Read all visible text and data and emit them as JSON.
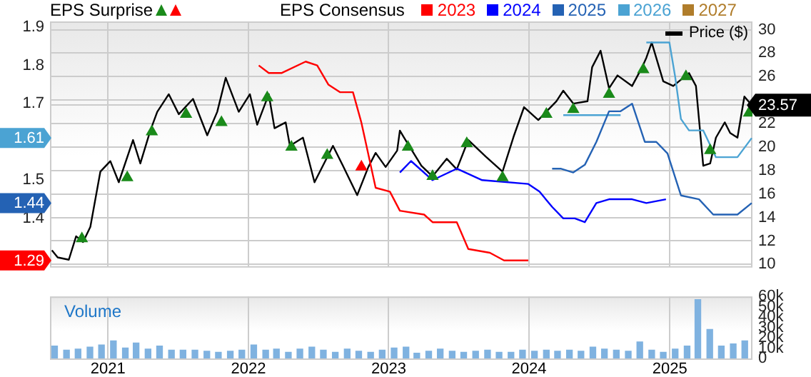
{
  "chart_data": [
    {
      "type": "line",
      "annotations": [
        "EPS Surprise",
        "EPS Consensus"
      ],
      "legend": "top",
      "grid": true,
      "tick_labels": "y",
      "xlim": [
        "2020-08-03",
        "2025-08-04"
      ],
      "xticks": [
        "2021",
        "2022",
        "2023",
        "2024",
        "2025"
      ],
      "ylim": [
        1.275,
        1.915
      ],
      "yticks": [
        {
          "value": 1.29,
          "label": "1.29"
        },
        1.4,
        {
          "value": 1.44,
          "label": "1.44"
        },
        1.5,
        {
          "value": 1.61,
          "label": "1.61"
        },
        1.7,
        1.8,
        1.9
      ],
      "y2lim": [
        9.85,
        30.7
      ],
      "y2ticks": [
        10,
        12,
        14,
        16,
        18,
        20,
        22,
        {
          "value": 23.57,
          "label": "23.57"
        },
        {
          "value": 24,
          "label": null
        },
        26,
        28,
        30
      ],
      "series": [
        {
          "name": "2023",
          "color": "#ff0000",
          "marker": "none",
          "x": [
            "2022-01-28",
            "2022-02-23",
            "2022-03-28",
            "2022-05-30",
            "2022-06-29",
            "2022-07-28",
            "2022-08-27",
            "2022-09-30",
            "2022-10-22",
            "2022-11-28",
            "2023-01-04",
            "2023-01-30",
            "2023-04-03",
            "2023-04-25",
            "2023-06-27",
            "2023-07-27",
            "2023-09-21",
            "2023-10-28",
            "2023-12-30"
          ],
          "values": [
            1.8,
            1.78,
            1.78,
            1.81,
            1.8,
            1.75,
            1.73,
            1.73,
            1.65,
            1.48,
            1.47,
            1.42,
            1.41,
            1.39,
            1.39,
            1.32,
            1.31,
            1.29,
            1.29
          ]
        },
        {
          "name": "2024",
          "color": "#0000ff",
          "marker": "none",
          "x": [
            "2023-01-30",
            "2023-02-28",
            "2023-04-25",
            "2023-06-27",
            "2023-09-01",
            "2023-12-30",
            "2024-01-28",
            "2024-03-01",
            "2024-03-30",
            "2024-04-29",
            "2024-05-25",
            "2024-06-24",
            "2024-07-27",
            "2024-09-25",
            "2024-11-01",
            "2024-12-22"
          ],
          "values": [
            1.52,
            1.55,
            1.5,
            1.53,
            1.5,
            1.49,
            1.47,
            1.43,
            1.4,
            1.4,
            1.39,
            1.44,
            1.45,
            1.45,
            1.44,
            1.45
          ]
        },
        {
          "name": "2025",
          "color": "#2462b4",
          "marker": "none",
          "x": [
            "2024-03-01",
            "2024-03-23",
            "2024-04-25",
            "2024-05-25",
            "2024-06-24",
            "2024-07-27",
            "2024-08-26",
            "2024-09-25",
            "2024-10-28",
            "2024-11-27",
            "2024-12-26",
            "2025-01-30",
            "2025-03-18",
            "2025-04-24",
            "2025-06-26",
            "2025-08-02"
          ],
          "values": [
            1.53,
            1.53,
            1.52,
            1.54,
            1.6,
            1.68,
            1.68,
            1.7,
            1.6,
            1.6,
            1.57,
            1.46,
            1.45,
            1.41,
            1.41,
            1.44
          ]
        },
        {
          "name": "2026",
          "color": "#4ba3d3",
          "marker": "none",
          "x": [
            "2024-03-30",
            "2024-08-26",
            "2024-09-25",
            "2024-11-01",
            "2024-12-31",
            "2025-01-15",
            "2025-01-30",
            "2025-02-20",
            "2025-03-29",
            "2025-05-01",
            "2025-06-26",
            "2025-08-02"
          ],
          "values": [
            1.67,
            1.67,
            null,
            1.86,
            1.86,
            1.77,
            1.66,
            1.63,
            1.63,
            1.56,
            1.56,
            1.61
          ]
        },
        {
          "name": "2027",
          "color": "#b07d2b",
          "marker": "none"
        },
        {
          "name": "Price ($)",
          "color": "#000000",
          "axis": "y2",
          "marker": "none",
          "x": [
            "2020-08-08",
            "2020-08-23",
            "2020-09-21",
            "2020-10-10",
            "2020-10-28",
            "2020-11-16",
            "2020-12-12",
            "2021-01-07",
            "2021-01-29",
            "2021-03-07",
            "2021-03-26",
            "2021-04-21",
            "2021-05-09",
            "2021-06-08",
            "2021-07-04",
            "2021-08-10",
            "2021-09-16",
            "2021-10-12",
            "2021-11-03",
            "2021-12-07",
            "2022-01-05",
            "2022-01-24",
            "2022-02-23",
            "2022-03-10",
            "2022-04-08",
            "2022-04-19",
            "2022-05-23",
            "2022-06-22",
            "2022-08-09",
            "2022-09-04",
            "2022-10-11",
            "2022-11-09",
            "2022-11-28",
            "2022-12-24",
            "2023-01-23",
            "2023-01-30",
            "2023-02-10",
            "2023-03-27",
            "2023-04-25",
            "2023-06-01",
            "2023-06-27",
            "2023-07-27",
            "2023-09-10",
            "2023-10-24",
            "2023-11-23",
            "2023-12-19",
            "2024-01-25",
            "2024-03-12",
            "2024-03-30",
            "2024-04-25",
            "2024-06-01",
            "2024-06-13",
            "2024-07-05",
            "2024-07-27",
            "2024-08-18",
            "2024-09-25",
            "2024-10-21",
            "2024-11-01",
            "2024-11-15",
            "2024-12-15",
            "2025-01-10",
            "2025-02-20",
            "2025-03-10",
            "2025-03-29",
            "2025-04-16",
            "2025-05-01",
            "2025-05-24",
            "2025-06-07",
            "2025-06-26",
            "2025-07-14",
            "2025-08-02"
          ],
          "values": [
            11.2,
            10.6,
            10.4,
            12.4,
            11.9,
            13.2,
            17.9,
            18.8,
            17.0,
            20.6,
            18.6,
            21.4,
            23.0,
            24.5,
            22.8,
            24.1,
            21.0,
            23.0,
            25.9,
            23.0,
            24.5,
            21.9,
            24.5,
            21.6,
            22.1,
            20.1,
            20.8,
            17.0,
            20.1,
            18.4,
            15.9,
            18.3,
            19.5,
            18.3,
            19.7,
            21.4,
            20.8,
            18.4,
            17.5,
            19.0,
            18.1,
            20.6,
            19.2,
            17.9,
            21.0,
            23.4,
            22.3,
            23.9,
            24.8,
            23.7,
            23.9,
            26.8,
            28.2,
            25.0,
            26.1,
            25.2,
            26.8,
            27.6,
            28.9,
            25.6,
            25.2,
            26.3,
            25.2,
            18.4,
            18.6,
            20.8,
            22.1,
            21.2,
            20.8,
            24.3,
            23.57
          ]
        },
        {
          "type": "scatter",
          "color": "#1a8a1a",
          "axis": "y2",
          "marker": "triangle",
          "x": [
            "2020-10-25",
            "2021-02-20",
            "2021-04-25",
            "2021-07-23",
            "2021-10-23",
            "2022-02-19",
            "2022-04-23",
            "2022-07-25",
            "2023-02-20",
            "2023-04-25",
            "2023-07-23",
            "2023-10-24",
            "2024-02-15",
            "2024-04-25",
            "2024-07-27",
            "2024-10-24",
            "2025-02-12",
            "2025-04-16",
            "2025-07-26"
          ],
          "values": [
            12.2,
            17.4,
            21.3,
            22.8,
            22.1,
            24.2,
            20.0,
            19.3,
            20.0,
            17.5,
            20.3,
            17.4,
            22.8,
            23.2,
            24.5,
            26.6,
            26.0,
            19.7,
            22.9
          ]
        },
        {
          "type": "scatter",
          "color": "#ff0000",
          "axis": "y2",
          "marker": "triangle",
          "x": [
            "2022-10-22"
          ],
          "values": [
            18.3
          ]
        }
      ]
    },
    {
      "type": "bar",
      "title": "Volume",
      "grid": "x",
      "xlim": [
        "2020-08-03",
        "2025-08-04"
      ],
      "xticks": [
        "2021",
        "2022",
        "2023",
        "2024",
        "2025"
      ],
      "y2lim": [
        0,
        60000
      ],
      "y2ticks": [
        0,
        {
          "value": 10000,
          "label": "10k"
        },
        {
          "value": 20000,
          "label": "20k"
        },
        {
          "value": 30000,
          "label": "30k"
        },
        {
          "value": 40000,
          "label": "40k"
        },
        {
          "value": 50000,
          "label": "50k"
        },
        {
          "value": 60000,
          "label": "60k"
        }
      ],
      "series": [
        {
          "color": "#7fb2e0",
          "axis": "y2",
          "x": [
            "2020-08-15",
            "2020-09-15",
            "2020-10-15",
            "2020-11-15",
            "2020-12-15",
            "2021-01-15",
            "2021-02-15",
            "2021-03-15",
            "2021-04-15",
            "2021-05-15",
            "2021-06-15",
            "2021-07-15",
            "2021-08-15",
            "2021-09-15",
            "2021-10-15",
            "2021-11-15",
            "2021-12-15",
            "2022-01-15",
            "2022-02-15",
            "2022-03-15",
            "2022-04-15",
            "2022-05-15",
            "2022-06-15",
            "2022-07-15",
            "2022-08-15",
            "2022-09-15",
            "2022-10-15",
            "2022-11-15",
            "2022-12-15",
            "2023-01-15",
            "2023-02-15",
            "2023-03-15",
            "2023-04-15",
            "2023-05-15",
            "2023-06-15",
            "2023-07-15",
            "2023-08-15",
            "2023-09-15",
            "2023-10-15",
            "2023-11-15",
            "2023-12-15",
            "2024-01-15",
            "2024-02-15",
            "2024-03-15",
            "2024-04-15",
            "2024-05-15",
            "2024-06-15",
            "2024-07-15",
            "2024-08-15",
            "2024-09-15",
            "2024-10-15",
            "2024-11-15",
            "2024-12-15",
            "2025-01-15",
            "2025-02-15",
            "2025-03-15",
            "2025-04-15",
            "2025-05-15",
            "2025-06-15",
            "2025-07-15"
          ],
          "values": [
            12000,
            8000,
            9000,
            11000,
            13000,
            17000,
            10000,
            15000,
            9000,
            12000,
            8000,
            8000,
            8000,
            7000,
            6000,
            7000,
            8000,
            13000,
            8000,
            9000,
            6000,
            9000,
            11000,
            8000,
            6000,
            9000,
            7000,
            6000,
            8000,
            10000,
            11000,
            5000,
            7000,
            9000,
            7000,
            6000,
            7000,
            8000,
            6000,
            6000,
            8000,
            7000,
            8000,
            7000,
            8000,
            7000,
            11000,
            9000,
            8000,
            7000,
            16000,
            8000,
            6000,
            9000,
            12000,
            57000,
            28000,
            12000,
            14000,
            17000
          ]
        }
      ]
    }
  ]
}
